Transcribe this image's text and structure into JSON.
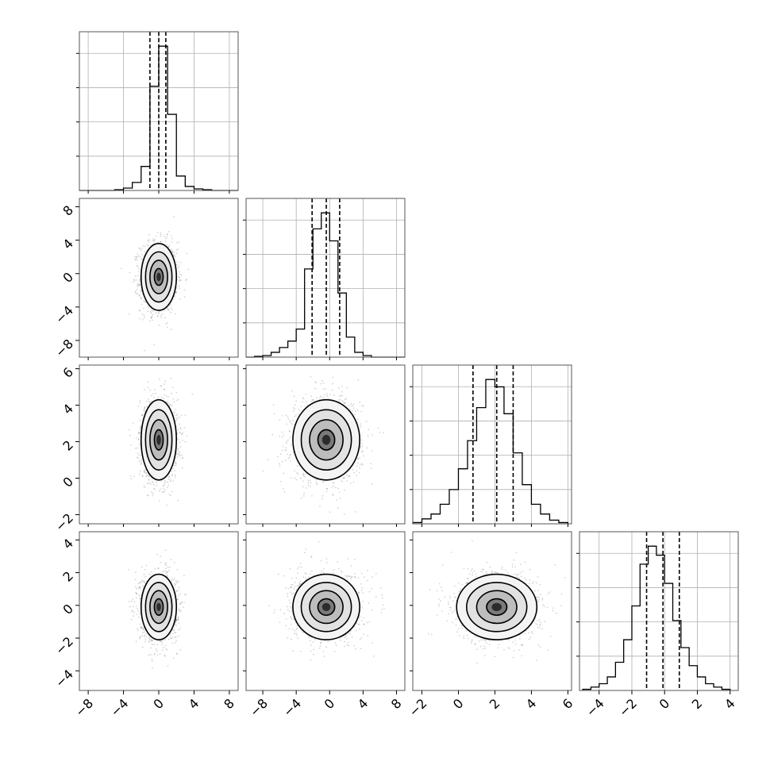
{
  "chart_data": {
    "type": "corner",
    "n_params": 4,
    "grid": true,
    "ranges": [
      [
        -9,
        9
      ],
      [
        -10,
        9
      ],
      [
        -2.5,
        6.2
      ],
      [
        -5.2,
        4.5
      ]
    ],
    "ticks": [
      [
        -8,
        -4,
        0,
        4,
        8
      ],
      [
        -8,
        -4,
        0,
        4,
        8
      ],
      [
        -2,
        0,
        2,
        4,
        6
      ],
      [
        -4,
        -2,
        0,
        2,
        4
      ]
    ],
    "tick_labels": [
      [
        "−8",
        "−4",
        "0",
        "4",
        "8"
      ],
      [
        "−8",
        "−4",
        "0",
        "4",
        "8"
      ],
      [
        "−2",
        "0",
        "2",
        "4",
        "6"
      ],
      [
        "−4",
        "−2",
        "0",
        "2",
        "4"
      ]
    ],
    "marginals": [
      {
        "bin_edges": [
          -9,
          -8,
          -7,
          -6,
          -5,
          -4,
          -3,
          -2,
          -1,
          0,
          1,
          2,
          3,
          4,
          5,
          6,
          7,
          8,
          9
        ],
        "counts": [
          0,
          0,
          0,
          0,
          1,
          3,
          10,
          30,
          130,
          180,
          95,
          18,
          5,
          2,
          1,
          0,
          0,
          0
        ],
        "quantiles": [
          -1.0,
          0.0,
          0.8
        ]
      },
      {
        "bin_edges": [
          -10,
          -9,
          -8,
          -7,
          -6,
          -5,
          -4,
          -3,
          -2,
          -1,
          0,
          1,
          2,
          3,
          4,
          5,
          6,
          7,
          8,
          9
        ],
        "counts": [
          0,
          1,
          2,
          6,
          12,
          20,
          35,
          110,
          160,
          180,
          145,
          80,
          25,
          6,
          2,
          0,
          0,
          0,
          0
        ],
        "quantiles": [
          -2.1,
          -0.4,
          1.2
        ]
      },
      {
        "bin_edges": [
          -2.5,
          -2.0,
          -1.5,
          -1.0,
          -0.5,
          0.0,
          0.5,
          1.0,
          1.5,
          2.0,
          2.5,
          3.0,
          3.5,
          4.0,
          4.5,
          5.0,
          5.5,
          6.0
        ],
        "counts": [
          1,
          4,
          8,
          16,
          28,
          45,
          68,
          95,
          118,
          112,
          90,
          58,
          32,
          16,
          8,
          3,
          1
        ],
        "quantiles": [
          0.8,
          2.1,
          3.0
        ]
      },
      {
        "bin_edges": [
          -5,
          -4.5,
          -4,
          -3.5,
          -3,
          -2.5,
          -2,
          -1.5,
          -1,
          -0.5,
          0,
          0.5,
          1,
          1.5,
          2,
          2.5,
          3,
          3.5,
          4
        ],
        "counts": [
          1,
          3,
          6,
          12,
          25,
          45,
          75,
          112,
          128,
          120,
          95,
          62,
          38,
          22,
          12,
          6,
          3,
          1
        ],
        "quantiles": [
          -1.1,
          -0.1,
          0.9
        ]
      }
    ],
    "joint": [
      {
        "row": 1,
        "col": 0,
        "mean": [
          0.0,
          -0.4
        ],
        "std": [
          1.0,
          2.0
        ]
      },
      {
        "row": 2,
        "col": 0,
        "mean": [
          0.0,
          2.1
        ],
        "std": [
          1.0,
          1.1
        ]
      },
      {
        "row": 2,
        "col": 1,
        "mean": [
          -0.4,
          2.1
        ],
        "std": [
          2.0,
          1.1
        ]
      },
      {
        "row": 3,
        "col": 0,
        "mean": [
          0.0,
          -0.1
        ],
        "std": [
          1.0,
          1.0
        ]
      },
      {
        "row": 3,
        "col": 1,
        "mean": [
          -0.4,
          -0.1
        ],
        "std": [
          2.0,
          1.0
        ]
      },
      {
        "row": 3,
        "col": 2,
        "mean": [
          2.1,
          -0.1
        ],
        "std": [
          1.1,
          1.0
        ]
      }
    ]
  }
}
